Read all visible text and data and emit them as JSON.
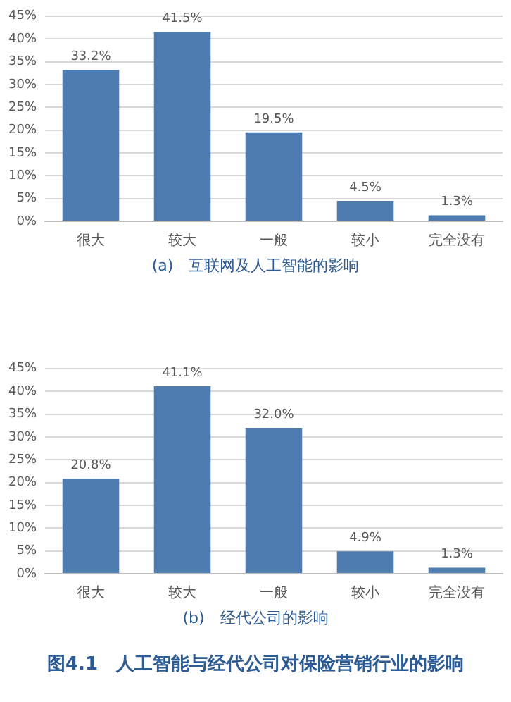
{
  "chart_data": [
    {
      "type": "bar",
      "title": "(a)　互联网及人工智能的影响",
      "categories": [
        "很大",
        "较大",
        "一般",
        "较小",
        "完全没有"
      ],
      "values": [
        33.2,
        41.5,
        19.5,
        4.5,
        1.3
      ],
      "value_labels": [
        "33.2%",
        "41.5%",
        "19.5%",
        "4.5%",
        "1.3%"
      ],
      "color": "#4e7bb0",
      "ylim": [
        0,
        45
      ],
      "yticks": [
        {
          "value": 0,
          "label": "0%"
        },
        {
          "value": 5,
          "label": "5%"
        },
        {
          "value": 10,
          "label": "10%"
        },
        {
          "value": 15,
          "label": "15%"
        },
        {
          "value": 20,
          "label": "20%"
        },
        {
          "value": 25,
          "label": "25%"
        },
        {
          "value": 30,
          "label": "30%"
        },
        {
          "value": 35,
          "label": "35%"
        },
        {
          "value": 40,
          "label": "40%"
        },
        {
          "value": 45,
          "label": "45%"
        }
      ],
      "grid": "y",
      "legend": false
    },
    {
      "type": "bar",
      "title": "(b)　经代公司的影响",
      "categories": [
        "很大",
        "较大",
        "一般",
        "较小",
        "完全没有"
      ],
      "values": [
        20.8,
        41.1,
        32.0,
        4.9,
        1.3
      ],
      "value_labels": [
        "20.8%",
        "41.1%",
        "32.0%",
        "4.9%",
        "1.3%"
      ],
      "color": "#4e7bb0",
      "ylim": [
        0,
        45
      ],
      "yticks": [
        {
          "value": 0,
          "label": "0%"
        },
        {
          "value": 5,
          "label": "5%"
        },
        {
          "value": 10,
          "label": "10%"
        },
        {
          "value": 15,
          "label": "15%"
        },
        {
          "value": 20,
          "label": "20%"
        },
        {
          "value": 25,
          "label": "25%"
        },
        {
          "value": 30,
          "label": "30%"
        },
        {
          "value": 35,
          "label": "35%"
        },
        {
          "value": 40,
          "label": "40%"
        },
        {
          "value": 45,
          "label": "45%"
        }
      ],
      "grid": "y",
      "legend": false,
      "annotations": [
        "图4.1　人工智能与经代公司对保险营销行业的影响"
      ]
    }
  ]
}
